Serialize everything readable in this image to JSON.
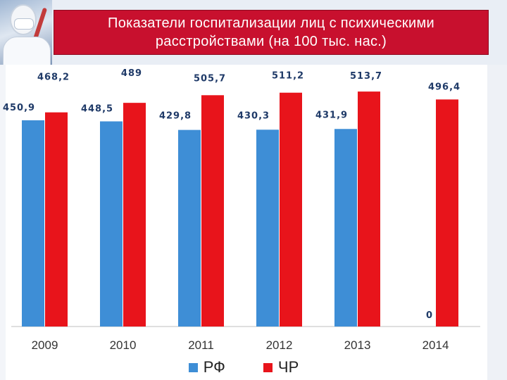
{
  "header": {
    "title": "Показатели госпитализации  лиц с психическими расстройствами (на 100 тыс. нас.)"
  },
  "colors": {
    "rf": "#3e8ed6",
    "chr": "#e8141b",
    "title_bg": "#c8102e",
    "label_text": "#1f3a68"
  },
  "chart_data": {
    "type": "bar",
    "title": "Показатели госпитализации  лиц с психическими расстройствами (на 100 тыс. нас.)",
    "categories": [
      "2009",
      "2010",
      "2011",
      "2012",
      "2013",
      "2014"
    ],
    "series": [
      {
        "name": "РФ",
        "values": [
          450.9,
          448.5,
          429.8,
          430.3,
          431.9,
          0
        ],
        "labels": [
          "450,9",
          "448,5",
          "429,8",
          "430,3",
          "431,9",
          "0"
        ]
      },
      {
        "name": "ЧР",
        "values": [
          468.2,
          489,
          505.7,
          511.2,
          513.7,
          496.4
        ],
        "labels": [
          "468,2",
          "489",
          "505,7",
          "511,2",
          "513,7",
          "496,4"
        ]
      }
    ],
    "ylim": [
      0,
      560
    ],
    "grid": false,
    "legend_position": "bottom-center"
  }
}
